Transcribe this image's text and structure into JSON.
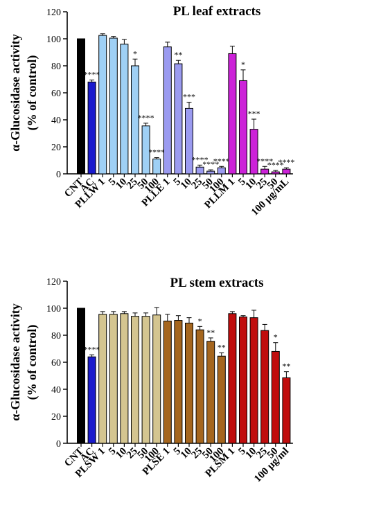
{
  "chart_data": [
    {
      "type": "bar",
      "title": "PL leaf extracts",
      "ylabel_line1": "α-Glucosidase activity",
      "ylabel_line2": "(% of control)",
      "ylim": [
        0,
        120
      ],
      "yticks": [
        0,
        20,
        40,
        60,
        80,
        100,
        120
      ],
      "grid": false,
      "categories": [
        "CNT",
        "AC",
        "PLLW 1",
        "5",
        "10",
        "25",
        "50",
        "100",
        "PLLE 1",
        "5",
        "10",
        "25",
        "50",
        "100",
        "PLLM 1",
        "5",
        "10",
        "25",
        "50",
        "100 µg/mL"
      ],
      "values": [
        100,
        68,
        102.5,
        100.5,
        96,
        80,
        35.5,
        11,
        94,
        81.5,
        48.5,
        5,
        2,
        4.5,
        89,
        69,
        33,
        3.5,
        1.5,
        3.5
      ],
      "errors": [
        0,
        1.5,
        1.2,
        1.2,
        3.5,
        5,
        2,
        1,
        3.5,
        2.5,
        4.5,
        1.5,
        1,
        1,
        5.5,
        8,
        7.5,
        2,
        1,
        1
      ],
      "significance": [
        "",
        "****",
        "",
        "",
        "",
        "*",
        "****",
        "****",
        "",
        "**",
        "***",
        "****",
        "****",
        "****",
        "",
        "*",
        "***",
        "****",
        "****",
        "****"
      ],
      "colors": [
        "#000000",
        "#1a1acd",
        "#9fd0f5",
        "#9fd0f5",
        "#9fd0f5",
        "#9fd0f5",
        "#9fd0f5",
        "#9fd0f5",
        "#9b9bf0",
        "#9b9bf0",
        "#9b9bf0",
        "#9b9bf0",
        "#9b9bf0",
        "#9b9bf0",
        "#cc22d8",
        "#cc22d8",
        "#cc22d8",
        "#cc22d8",
        "#cc22d8",
        "#cc22d8"
      ]
    },
    {
      "type": "bar",
      "title": "PL stem extracts",
      "ylabel_line1": "α-Glucosidase activity",
      "ylabel_line2": "(% of control)",
      "ylim": [
        0,
        120
      ],
      "yticks": [
        0,
        20,
        40,
        60,
        80,
        100,
        120
      ],
      "grid": false,
      "categories": [
        "CNT",
        "AC",
        "PLSW 1",
        "5",
        "10",
        "25",
        "50",
        "100",
        "PLSE 1",
        "5",
        "10",
        "25",
        "50",
        "100",
        "PLSM 1",
        "5",
        "10",
        "25",
        "50",
        "100 µg/ml"
      ],
      "values": [
        100,
        64,
        95.5,
        95.5,
        96,
        94,
        94,
        95,
        90.5,
        91,
        89,
        84,
        75.5,
        64.5,
        96,
        93.5,
        93,
        83.5,
        68,
        48.5
      ],
      "errors": [
        0,
        1.5,
        2,
        2,
        1.5,
        2.5,
        2.5,
        5.5,
        5,
        3.5,
        4,
        2.5,
        2.5,
        2.5,
        1.5,
        1,
        5.5,
        4.5,
        6.5,
        4.5
      ],
      "significance": [
        "",
        "****",
        "",
        "",
        "",
        "",
        "",
        "",
        "",
        "",
        "",
        "*",
        "**",
        "**",
        "",
        "",
        "",
        "",
        "*",
        "**"
      ],
      "colors": [
        "#000000",
        "#1a1acd",
        "#d4c590",
        "#d4c590",
        "#d4c590",
        "#d4c590",
        "#d4c590",
        "#d4c590",
        "#a5661e",
        "#a5661e",
        "#a5661e",
        "#a5661e",
        "#a5661e",
        "#a5661e",
        "#c00d0d",
        "#c00d0d",
        "#c00d0d",
        "#c00d0d",
        "#c00d0d",
        "#c00d0d"
      ]
    }
  ]
}
